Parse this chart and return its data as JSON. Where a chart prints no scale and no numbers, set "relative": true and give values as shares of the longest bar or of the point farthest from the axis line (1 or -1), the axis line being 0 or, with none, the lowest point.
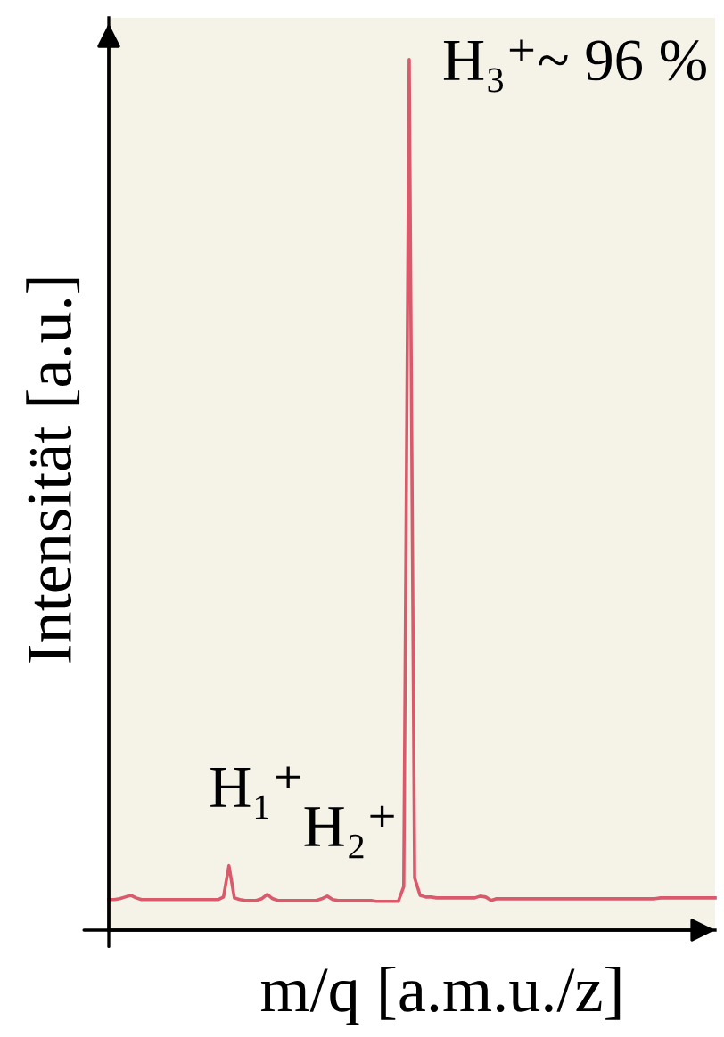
{
  "chart_data": {
    "type": "line",
    "relative": true,
    "color": "#d95a6b",
    "xlabel": "m/q [a.m.u./z]",
    "ylabel": "Intensität [a.u.]",
    "annotations": [
      "H₁⁺",
      "H₂⁺",
      "H₃⁺~ 96 %"
    ],
    "categories": [
      null,
      null,
      null,
      null,
      null,
      null,
      null,
      null,
      null,
      null,
      null,
      null,
      null,
      null,
      null,
      null,
      null,
      null,
      null,
      null,
      null,
      null,
      null,
      null,
      null,
      null,
      null,
      null,
      null,
      null,
      null,
      null,
      null,
      null,
      null,
      null,
      null,
      null,
      null,
      null,
      null,
      null,
      null,
      null,
      null,
      null,
      null,
      null,
      null,
      null,
      null,
      null,
      null,
      null,
      null,
      null,
      null,
      null,
      null,
      null,
      null,
      null,
      null,
      null,
      null,
      null,
      null,
      null,
      null,
      null,
      null,
      null,
      null,
      null,
      null,
      null,
      null,
      null,
      null,
      null,
      null,
      null,
      null,
      null,
      null,
      null,
      null,
      null,
      null,
      null,
      null,
      null,
      null,
      null,
      null,
      null,
      null,
      null,
      null,
      null,
      null,
      null,
      null,
      null,
      null,
      null,
      null,
      null,
      null,
      null,
      null,
      null
    ],
    "values": [
      0.035,
      0.035,
      0.036,
      0.038,
      0.04,
      0.037,
      0.035,
      0.035,
      0.035,
      0.035,
      0.035,
      0.035,
      0.035,
      0.035,
      0.035,
      0.035,
      0.035,
      0.035,
      0.035,
      0.035,
      0.035,
      0.038,
      0.074,
      0.037,
      0.035,
      0.034,
      0.034,
      0.034,
      0.036,
      0.041,
      0.036,
      0.034,
      0.034,
      0.034,
      0.034,
      0.034,
      0.034,
      0.034,
      0.034,
      0.036,
      0.039,
      0.035,
      0.034,
      0.034,
      0.034,
      0.034,
      0.034,
      0.034,
      0.034,
      0.033,
      0.033,
      0.033,
      0.033,
      0.033,
      0.05,
      1.0,
      0.06,
      0.04,
      0.038,
      0.038,
      0.037,
      0.037,
      0.037,
      0.037,
      0.037,
      0.037,
      0.037,
      0.037,
      0.039,
      0.038,
      0.034,
      0.036,
      0.036,
      0.036,
      0.036,
      0.036,
      0.036,
      0.036,
      0.036,
      0.036,
      0.036,
      0.036,
      0.036,
      0.036,
      0.036,
      0.036,
      0.036,
      0.036,
      0.036,
      0.036,
      0.036,
      0.036,
      0.036,
      0.036,
      0.036,
      0.036,
      0.036,
      0.036,
      0.036,
      0.036,
      0.036,
      0.037,
      0.037,
      0.037,
      0.037,
      0.037,
      0.037,
      0.037,
      0.037,
      0.037,
      0.037,
      0.037
    ]
  }
}
